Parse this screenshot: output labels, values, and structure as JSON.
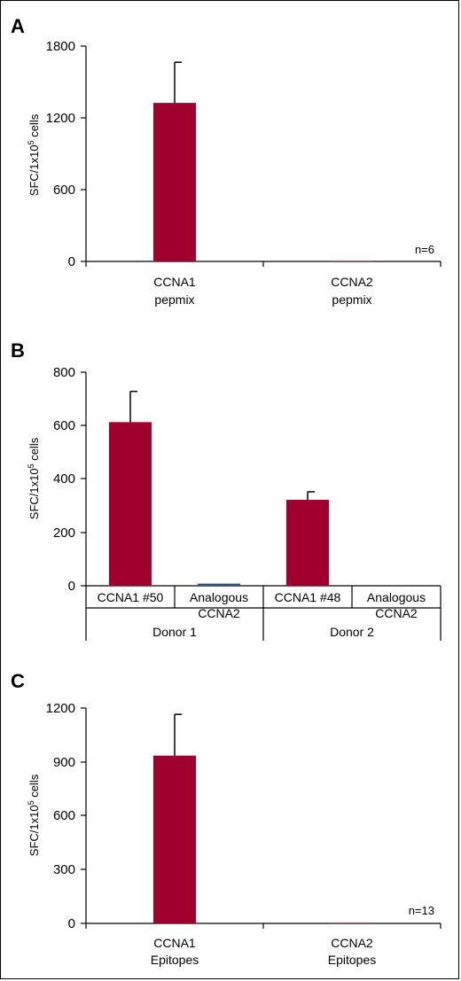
{
  "chart_data": [
    {
      "type": "bar",
      "panel_label": "A",
      "ylabel": "SFC/1x10",
      "ylabel_sup": "5",
      "ylabel_suffix": " cells",
      "ylim": [
        0,
        1800
      ],
      "yticks": [
        "0",
        "600",
        "1200",
        "1800"
      ],
      "categories": [
        [
          "CCNA1",
          "pepmix"
        ],
        [
          "CCNA2",
          "pepmix"
        ]
      ],
      "values": [
        1325,
        3
      ],
      "errors": [
        340,
        0
      ],
      "bar_colors": [
        "#a0002e",
        "#a0002e"
      ],
      "annotation": "n=6"
    },
    {
      "type": "bar",
      "panel_label": "B",
      "ylabel": "SFC/1x10",
      "ylabel_sup": "5",
      "ylabel_suffix": " cells",
      "ylim": [
        0,
        800
      ],
      "yticks": [
        "0",
        "200",
        "400",
        "600",
        "800"
      ],
      "categories": [
        [
          "CCNA1 #50"
        ],
        [
          "Analogous",
          "CCNA2"
        ],
        [
          "CCNA1 #48"
        ],
        [
          "Analogous",
          "CCNA2"
        ]
      ],
      "values": [
        613,
        8,
        322,
        0
      ],
      "errors": [
        115,
        0,
        30,
        0
      ],
      "bar_colors": [
        "#a0002e",
        "#2e4f7f",
        "#a0002e",
        "#a0002e"
      ],
      "groups": [
        "Donor 1",
        "Donor 2"
      ]
    },
    {
      "type": "bar",
      "panel_label": "C",
      "ylabel": "SFC/1x10",
      "ylabel_sup": "5",
      "ylabel_suffix": " cells",
      "ylim": [
        0,
        1200
      ],
      "yticks": [
        "0",
        "300",
        "600",
        "900",
        "1200"
      ],
      "categories": [
        [
          "CCNA1",
          "Epitopes"
        ],
        [
          "CCNA2",
          "Epitopes"
        ]
      ],
      "values": [
        935,
        3
      ],
      "errors": [
        230,
        0
      ],
      "bar_colors": [
        "#a0002e",
        "#a0002e"
      ],
      "annotation": "n=13"
    }
  ]
}
